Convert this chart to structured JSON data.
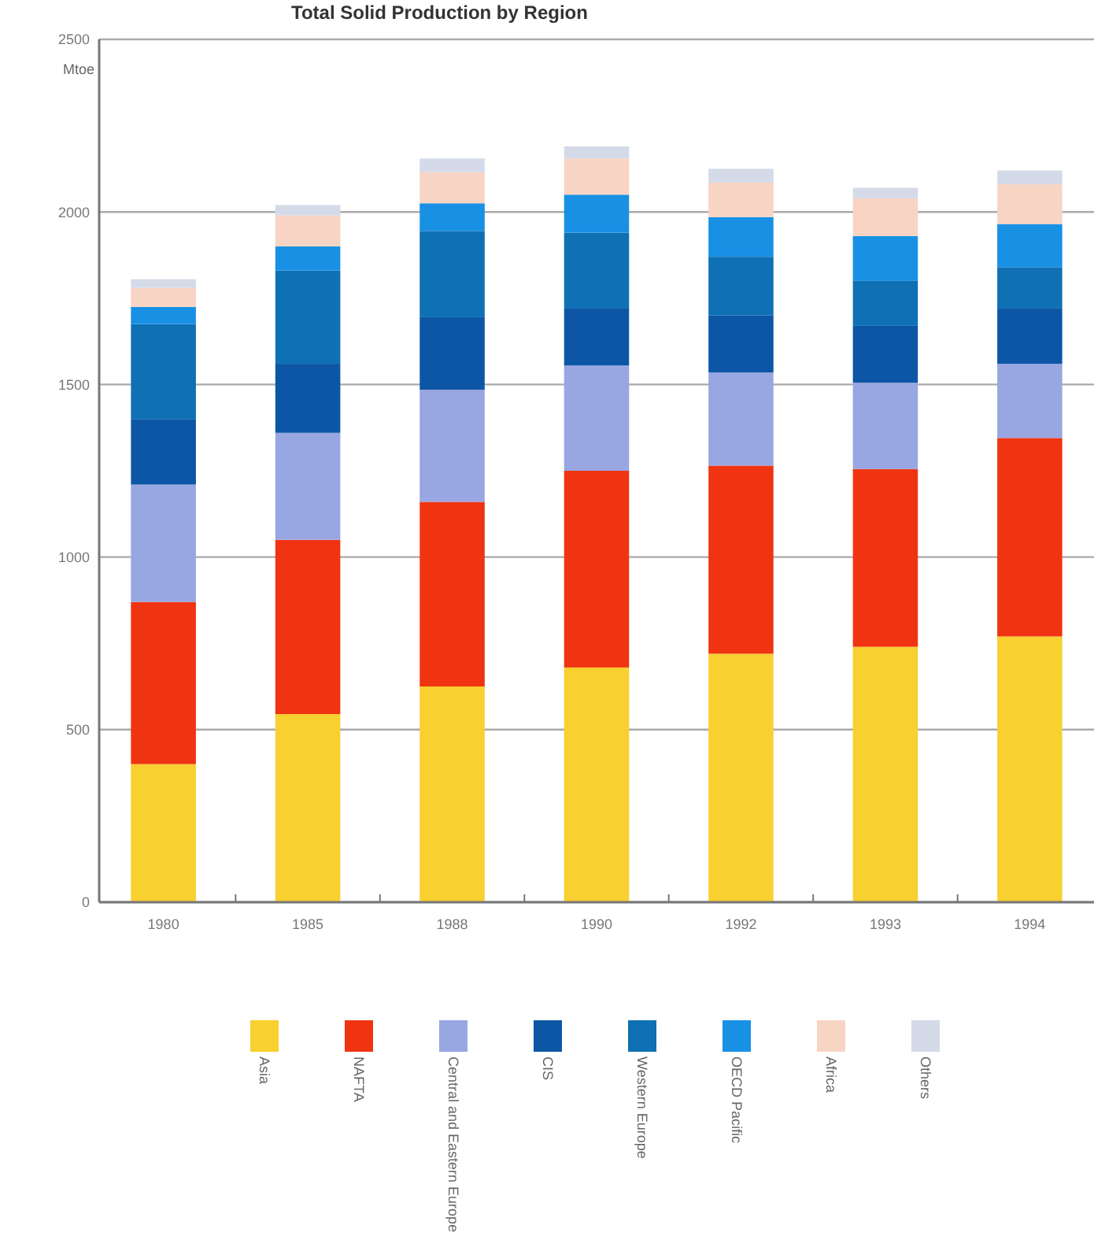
{
  "chart_data": {
    "type": "bar",
    "title": "Total Solid Production by Region",
    "ylabel": "Mtoe",
    "stacked": true,
    "categories": [
      "1980",
      "1985",
      "1988",
      "1990",
      "1992",
      "1993",
      "1994"
    ],
    "ylim": [
      0,
      2500
    ],
    "yticks": [
      0,
      500,
      1000,
      1500,
      2000,
      2500
    ],
    "grid": "y",
    "legend": "bottom",
    "series": [
      {
        "name": "Asia",
        "color": "#f8d030",
        "values": [
          400,
          545,
          625,
          680,
          720,
          740,
          770
        ]
      },
      {
        "name": "NAFTA",
        "color": "#f03412",
        "values": [
          470,
          505,
          535,
          570,
          545,
          515,
          575
        ]
      },
      {
        "name": "Central and Eastern Europe",
        "color": "#98a6e2",
        "values": [
          340,
          310,
          325,
          305,
          270,
          250,
          215
        ]
      },
      {
        "name": "CIS",
        "color": "#0d56a6",
        "values": [
          190,
          200,
          210,
          165,
          165,
          165,
          160
        ]
      },
      {
        "name": "Western Europe",
        "color": "#0f70b4",
        "values": [
          275,
          270,
          250,
          220,
          170,
          130,
          120
        ]
      },
      {
        "name": "OECD Pacific",
        "color": "#1890e4",
        "values": [
          50,
          70,
          80,
          110,
          115,
          130,
          125
        ]
      },
      {
        "name": "Africa",
        "color": "#f8d4c4",
        "values": [
          55,
          90,
          90,
          105,
          100,
          110,
          115
        ]
      },
      {
        "name": "Others",
        "color": "#d4dae8",
        "values": [
          25,
          30,
          40,
          35,
          40,
          30,
          40
        ]
      }
    ]
  }
}
